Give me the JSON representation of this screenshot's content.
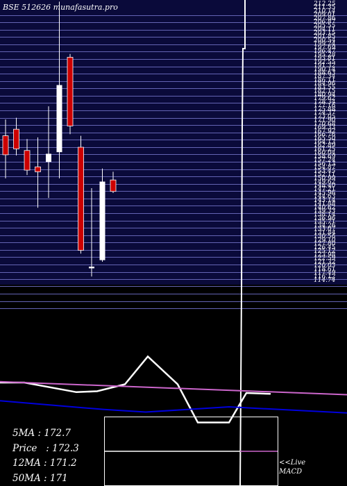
{
  "header": {
    "exchange": "BSE",
    "code": "512626",
    "site": "munafasutra.pro"
  },
  "chart_data": [
    {
      "type": "candlestick",
      "title": "",
      "price_scale": [
        207.9,
        205.7,
        203.4,
        201.2,
        198.9,
        196.7,
        194.4,
        192.2,
        190.0,
        187.7,
        185.5,
        183.2,
        181.0,
        178.8,
        176.5,
        174.3,
        172.0,
        169.8,
        167.5,
        165.3,
        163.1,
        160.8,
        158.6,
        156.3,
        154.1,
        151.9,
        149.6,
        147.4,
        145.1,
        142.9,
        140.6,
        138.4,
        136.2,
        133.9,
        131.7,
        129.4,
        127.2,
        125.0,
        122.7,
        120.5,
        118.2
      ],
      "y_axis_labels": [
        "212.25",
        "211.35",
        "210.14",
        "209.01",
        "207.86",
        "206.87",
        "205.55",
        "204.11",
        "203.15",
        "201.85",
        "200.54",
        "199.24",
        "197.69",
        "196.47",
        "195.28",
        "193.81",
        "192.55",
        "191.32",
        "190.14",
        "188.63",
        "187.34",
        "186.11",
        "184.96",
        "183.55",
        "182.15",
        "180.94",
        "179.62",
        "178.34",
        "177.16",
        "175.88",
        "174.37",
        "173.05",
        "171.90",
        "170.68",
        "169.33",
        "167.92",
        "166.76",
        "165.50",
        "164.13",
        "162.89",
        "161.25",
        "160.04",
        "158.69",
        "157.24",
        "156.13",
        "154.87",
        "153.45",
        "152.11",
        "150.99",
        "149.62",
        "148.40",
        "147.21",
        "145.96",
        "144.63",
        "143.14",
        "141.88",
        "140.62",
        "139.33",
        "138.14",
        "136.96",
        "135.71",
        "134.26",
        "133.07",
        "131.84",
        "130.56",
        "129.10",
        "127.80",
        "126.45",
        "125.12",
        "123.98",
        "122.59",
        "121.32",
        "120.03",
        "118.61",
        "117.49",
        "116.12",
        "114.74"
      ],
      "candles": [
        {
          "open": 171.0,
          "high": 176.0,
          "low": 158.0,
          "close": 165.2
        },
        {
          "open": 173.0,
          "high": 176.5,
          "low": 165.0,
          "close": 167.0
        },
        {
          "open": 166.5,
          "high": 170.0,
          "low": 159.0,
          "close": 160.5
        },
        {
          "open": 161.5,
          "high": 170.5,
          "low": 149.0,
          "close": 160.0
        },
        {
          "open": 163.0,
          "high": 180.0,
          "low": 152.0,
          "close": 165.5
        },
        {
          "open": 166.0,
          "high": 212.0,
          "low": 158.0,
          "close": 186.5
        },
        {
          "open": 195.0,
          "high": 196.0,
          "low": 171.5,
          "close": 174.0
        },
        {
          "open": 167.5,
          "high": 171.0,
          "low": 135.0,
          "close": 136.0
        },
        {
          "open": 130.5,
          "high": 155.0,
          "low": 128.0,
          "close": 131.0
        },
        {
          "open": 133.0,
          "high": 161.0,
          "low": 132.5,
          "close": 157.0
        },
        {
          "open": 157.5,
          "high": 160.0,
          "low": 153.5,
          "close": 154.0
        }
      ]
    },
    {
      "type": "line",
      "title": "MACD",
      "series": [
        {
          "color": "#ffffff",
          "x": [
            0,
            35,
            110,
            140,
            180,
            213,
            256,
            285,
            330,
            355,
            390
          ],
          "values": [
            -2.0,
            -2.0,
            -7.5,
            -7.0,
            -3.0,
            13.0,
            -3.0,
            -25.0,
            -25.0,
            -8.0,
            -8.5
          ]
        },
        {
          "color": "#cc66cc",
          "x": [
            0,
            500
          ],
          "values": [
            -1.5,
            -9.0
          ]
        },
        {
          "color": "#0000dd",
          "x": [
            0,
            150,
            210,
            330,
            500
          ],
          "values": [
            -12.5,
            -17.5,
            -19.0,
            -16.0,
            -19.5
          ]
        }
      ]
    }
  ],
  "ma": [
    {
      "label": "5MA",
      "value": "172.7"
    },
    {
      "label": "Price",
      "value": "172.3"
    },
    {
      "label": "12MA",
      "value": "171.2"
    },
    {
      "label": "50MA",
      "value": "171"
    }
  ],
  "live": {
    "line1": "<<Live",
    "line2": "MACD"
  },
  "colors": {
    "up": "#ffffff",
    "down": "#cc0000",
    "grid_bg": "#0a0a3a",
    "grid_line": "#6464b4"
  }
}
